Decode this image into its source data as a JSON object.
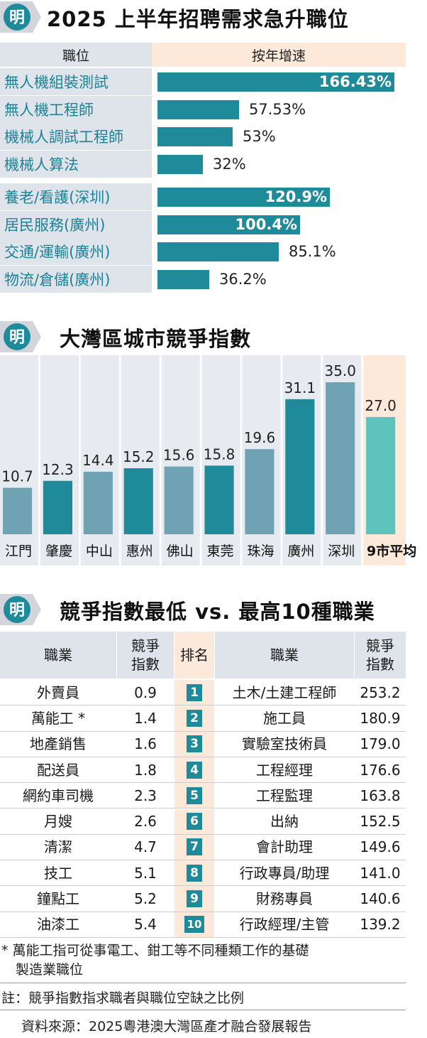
{
  "section1": {
    "title": "2025 上半年招聘需求急升職位",
    "col_position": "職位",
    "col_growth": "按年增速",
    "rows": [
      {
        "label": "無人機組裝測試",
        "value": 166.43,
        "display": "166.43%"
      },
      {
        "label": "無人機工程師",
        "value": 57.53,
        "display": "57.53%"
      },
      {
        "label": "機械人調試工程師",
        "value": 53,
        "display": "53%"
      },
      {
        "label": "機械人算法",
        "value": 32,
        "display": "32%"
      },
      {
        "label": "養老/看護(深圳)",
        "value": 120.9,
        "display": "120.9%"
      },
      {
        "label": "居民服務(廣州)",
        "value": 100.4,
        "display": "100.4%"
      },
      {
        "label": "交通/運輸(廣州)",
        "value": 85.1,
        "display": "85.1%"
      },
      {
        "label": "物流/倉儲(廣州)",
        "value": 36.2,
        "display": "36.2%"
      }
    ]
  },
  "section2": {
    "title": "大灣區城市競爭指數"
  },
  "chart_data": [
    {
      "type": "bar",
      "title": "2025 上半年招聘需求急升職位",
      "categories": [
        "無人機組裝測試",
        "無人機工程師",
        "機械人調試工程師",
        "機械人算法",
        "養老/看護(深圳)",
        "居民服務(廣州)",
        "交通/運輸(廣州)",
        "物流/倉儲(廣州)"
      ],
      "values": [
        166.43,
        57.53,
        53,
        32,
        120.9,
        100.4,
        85.1,
        36.2
      ],
      "xlabel": "職位",
      "ylabel": "按年增速"
    },
    {
      "type": "bar",
      "title": "大灣區城市競爭指數",
      "categories": [
        "江門",
        "肇慶",
        "中山",
        "惠州",
        "佛山",
        "東莞",
        "珠海",
        "廣州",
        "深圳",
        "9市平均"
      ],
      "values": [
        10.7,
        12.3,
        14.4,
        15.2,
        15.6,
        15.8,
        19.6,
        31.1,
        35.0,
        27.0
      ],
      "labels": [
        "10.7",
        "12.3",
        "14.4",
        "15.2",
        "15.6",
        "15.8",
        "19.6",
        "31.1",
        "35.0",
        "27.0"
      ],
      "ylim": [
        0,
        35
      ]
    },
    {
      "type": "table",
      "title": "競爭指數最低 vs. 最高10種職業",
      "columns": [
        "職業",
        "競爭指數",
        "排名",
        "職業",
        "競爭指數"
      ],
      "rows": [
        [
          "外賣員",
          "0.9",
          "1",
          "土木/土建工程師",
          "253.2"
        ],
        [
          "萬能工*",
          "1.4",
          "2",
          "施工員",
          "180.9"
        ],
        [
          "地產銷售",
          "1.6",
          "3",
          "實驗室技術員",
          "179.0"
        ],
        [
          "配送員",
          "1.8",
          "4",
          "工程經理",
          "176.6"
        ],
        [
          "網約車司機",
          "2.3",
          "5",
          "工程監理",
          "163.8"
        ],
        [
          "月嫂",
          "2.6",
          "6",
          "出納",
          "152.5"
        ],
        [
          "清潔",
          "4.7",
          "7",
          "會計助理",
          "149.6"
        ],
        [
          "技工",
          "5.1",
          "8",
          "行政專員/助理",
          "141.0"
        ],
        [
          "鐘點工",
          "5.2",
          "9",
          "財務專員",
          "140.6"
        ],
        [
          "油漆工",
          "5.4",
          "10",
          "行政經理/主管",
          "139.2"
        ]
      ]
    }
  ],
  "section3": {
    "title": "競爭指數最低 vs. 最高10種職業",
    "col_job": "職業",
    "col_index_1": "競爭",
    "col_index_2": "指數",
    "col_rank": "排名",
    "rows": [
      {
        "low_job": "外賣員",
        "low_idx": "0.9",
        "rank": "1",
        "high_job": "土木/土建工程師",
        "high_idx": "253.2"
      },
      {
        "low_job": "萬能工 *",
        "low_idx": "1.4",
        "rank": "2",
        "high_job": "施工員",
        "high_idx": "180.9"
      },
      {
        "low_job": "地產銷售",
        "low_idx": "1.6",
        "rank": "3",
        "high_job": "實驗室技術員",
        "high_idx": "179.0"
      },
      {
        "low_job": "配送員",
        "low_idx": "1.8",
        "rank": "4",
        "high_job": "工程經理",
        "high_idx": "176.6"
      },
      {
        "low_job": "網約車司機",
        "low_idx": "2.3",
        "rank": "5",
        "high_job": "工程監理",
        "high_idx": "163.8"
      },
      {
        "low_job": "月嫂",
        "low_idx": "2.6",
        "rank": "6",
        "high_job": "出納",
        "high_idx": "152.5"
      },
      {
        "low_job": "清潔",
        "low_idx": "4.7",
        "rank": "7",
        "high_job": "會計助理",
        "high_idx": "149.6"
      },
      {
        "low_job": "技工",
        "low_idx": "5.1",
        "rank": "8",
        "high_job": "行政專員/助理",
        "high_idx": "141.0"
      },
      {
        "low_job": "鐘點工",
        "low_idx": "5.2",
        "rank": "9",
        "high_job": "財務專員",
        "high_idx": "140.6"
      },
      {
        "low_job": "油漆工",
        "low_idx": "5.4",
        "rank": "10",
        "high_job": "行政經理/主管",
        "high_idx": "139.2"
      }
    ]
  },
  "notes": {
    "footnote_line1": "* 萬能工指可從事電工、鉗工等不同種類工作的基礎",
    "footnote_line2": "製造業職位",
    "remark": "註：競爭指數指求職者與職位空缺之比例",
    "source": "資料來源：2025粵港澳大灣區產才融合發展報告"
  },
  "logo": {
    "glyph": "明"
  },
  "colors": {
    "teal_dark": "#1e8a9a",
    "teal_mid": "#6fa3b3",
    "teal_light": "#5dc3bc",
    "header_gray": "#dfe4ea",
    "peach": "#fde9d9"
  }
}
